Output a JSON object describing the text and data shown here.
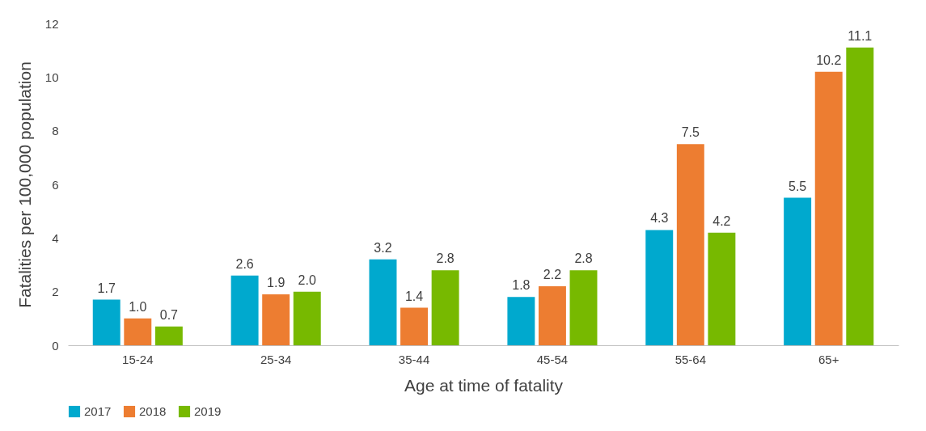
{
  "chart_data": {
    "type": "bar",
    "xlabel": "Age at time of fatality",
    "ylabel": "Fatalities per 100,000 population",
    "categories": [
      "15-24",
      "25-34",
      "35-44",
      "45-54",
      "55-64",
      "65+"
    ],
    "series": [
      {
        "name": "2017",
        "color": "#00a9ce",
        "values": [
          1.7,
          2.6,
          3.2,
          1.8,
          4.3,
          5.5
        ],
        "value_labels": [
          "1.7",
          "2.6",
          "3.2",
          "1.8",
          "4.3",
          "5.5"
        ]
      },
      {
        "name": "2018",
        "color": "#ed7d31",
        "values": [
          1.0,
          1.9,
          1.4,
          2.2,
          7.5,
          10.2
        ],
        "value_labels": [
          "1.0",
          "1.9",
          "1.4",
          "2.2",
          "7.5",
          "10.2"
        ]
      },
      {
        "name": "2019",
        "color": "#77b900",
        "values": [
          0.7,
          2.0,
          2.8,
          2.8,
          4.2,
          11.1
        ],
        "value_labels": [
          "0.7",
          "2.0",
          "2.8",
          "2.8",
          "4.2",
          "11.1"
        ]
      }
    ],
    "ylim": [
      0,
      12
    ],
    "yticks": [
      0,
      2,
      4,
      6,
      8,
      10,
      12
    ],
    "grid": false,
    "legend": "bottom"
  }
}
